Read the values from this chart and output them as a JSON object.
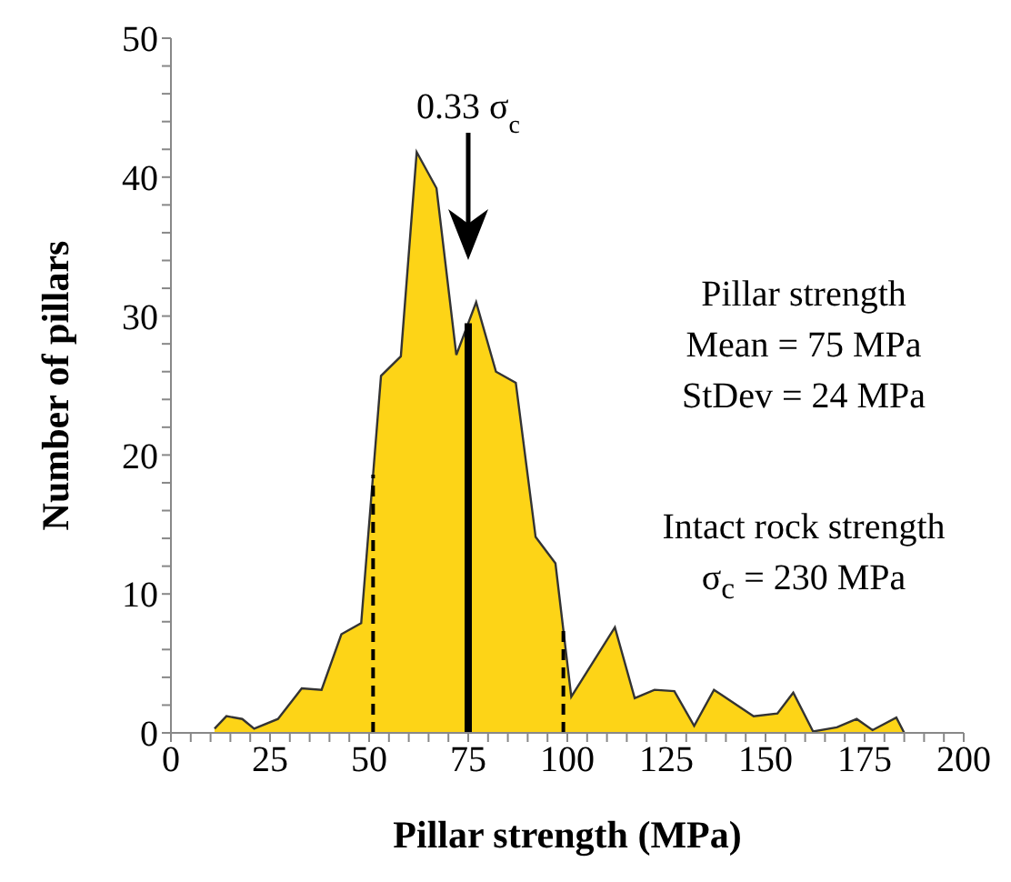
{
  "chart_data": {
    "type": "area",
    "xlabel": "Pillar strength (MPa)",
    "ylabel": "Number of pillars",
    "series": [
      {
        "color": "#fdd417",
        "x": [
          11,
          14,
          18,
          21,
          27,
          33,
          38,
          43,
          48,
          53,
          58,
          62,
          67,
          72,
          77,
          82,
          87,
          92,
          97,
          101,
          112,
          117,
          122,
          127,
          132,
          137,
          147,
          153,
          157,
          162,
          168,
          173,
          177,
          183,
          185
        ],
        "values": [
          0.3,
          1.2,
          1,
          0.3,
          1,
          3.2,
          3.1,
          7.1,
          7.9,
          25.7,
          27.1,
          41.8,
          39.2,
          27.2,
          31,
          26,
          25.2,
          14.1,
          12.2,
          2.6,
          7.6,
          2.5,
          3.1,
          3,
          0.5,
          3.1,
          1.2,
          1.4,
          2.9,
          0.1,
          0.4,
          1,
          0.2,
          1.1,
          0
        ]
      }
    ],
    "xlim": [
      0,
      200
    ],
    "xticks": [
      0,
      {
        "value": 5,
        "label": null
      },
      {
        "value": 10,
        "label": null
      },
      {
        "value": 15,
        "label": null
      },
      {
        "value": 20,
        "label": null
      },
      25,
      {
        "value": 30,
        "label": null
      },
      {
        "value": 35,
        "label": null
      },
      {
        "value": 40,
        "label": null
      },
      {
        "value": 45,
        "label": null
      },
      50,
      {
        "value": 55,
        "label": null
      },
      {
        "value": 60,
        "label": null
      },
      {
        "value": 65,
        "label": null
      },
      {
        "value": 70,
        "label": null
      },
      75,
      {
        "value": 80,
        "label": null
      },
      {
        "value": 85,
        "label": null
      },
      {
        "value": 90,
        "label": null
      },
      {
        "value": 95,
        "label": null
      },
      100,
      {
        "value": 105,
        "label": null
      },
      {
        "value": 110,
        "label": null
      },
      {
        "value": 115,
        "label": null
      },
      {
        "value": 120,
        "label": null
      },
      125,
      {
        "value": 130,
        "label": null
      },
      {
        "value": 135,
        "label": null
      },
      {
        "value": 140,
        "label": null
      },
      {
        "value": 145,
        "label": null
      },
      150,
      {
        "value": 155,
        "label": null
      },
      {
        "value": 160,
        "label": null
      },
      {
        "value": 165,
        "label": null
      },
      {
        "value": 170,
        "label": null
      },
      175,
      {
        "value": 180,
        "label": null
      },
      {
        "value": 185,
        "label": null
      },
      {
        "value": 190,
        "label": null
      },
      {
        "value": 195,
        "label": null
      },
      200
    ],
    "ylim": [
      0,
      50
    ],
    "yticks": [
      0,
      {
        "value": 2,
        "label": null
      },
      {
        "value": 4,
        "label": null
      },
      {
        "value": 6,
        "label": null
      },
      {
        "value": 8,
        "label": null
      },
      10,
      {
        "value": 12,
        "label": null
      },
      {
        "value": 14,
        "label": null
      },
      {
        "value": 16,
        "label": null
      },
      {
        "value": 18,
        "label": null
      },
      20,
      {
        "value": 22,
        "label": null
      },
      {
        "value": 24,
        "label": null
      },
      {
        "value": 26,
        "label": null
      },
      {
        "value": 28,
        "label": null
      },
      30,
      {
        "value": 32,
        "label": null
      },
      {
        "value": 34,
        "label": null
      },
      {
        "value": 36,
        "label": null
      },
      {
        "value": 38,
        "label": null
      },
      40,
      {
        "value": 42,
        "label": null
      },
      {
        "value": 44,
        "label": null
      },
      {
        "value": 46,
        "label": null
      },
      {
        "value": 48,
        "label": null
      },
      50
    ],
    "ref_lines": [
      {
        "axis": "x",
        "value": 51,
        "color": "#000000",
        "line_style": "dashed"
      },
      {
        "axis": "x",
        "value": 75,
        "color": "#000000",
        "line_style": "solid"
      },
      {
        "axis": "x",
        "value": 99,
        "color": "#000000",
        "line_style": "dashed"
      }
    ],
    "annotations": [
      "0.33 σ$_{c}$",
      "Pillar strength\nMean = 75 MPa\nStDev = 24 MPa",
      "Intact rock strength\nσ$_{c}$ = 230 MPa"
    ],
    "grid": false,
    "legend": false,
    "marker": "none",
    "line_style": "solid"
  }
}
